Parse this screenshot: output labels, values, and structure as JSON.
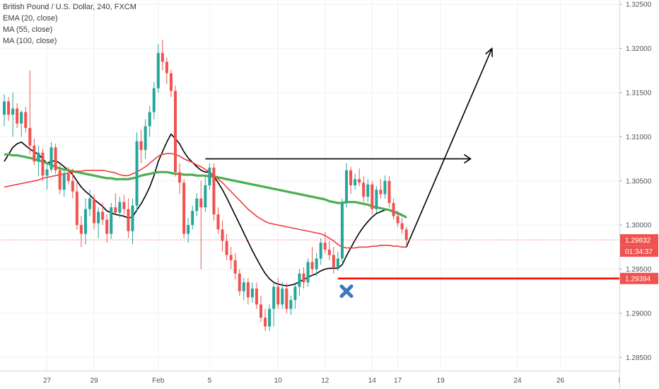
{
  "legend": {
    "title": "British Pound / U.S. Dollar, 240, FXCM",
    "ema20": "EMA (20, close)",
    "ma55": "MA (55, close)",
    "ma100": "MA (100, close)"
  },
  "colors": {
    "up": "#26a69a",
    "down": "#ef5350",
    "ema20": "#000000",
    "ma55": "#4caf50",
    "ma100": "#f23a3a",
    "support": "#ff0000",
    "x_mark": "#3a78c3",
    "price_label": "#ef5350"
  },
  "chart_data": {
    "type": "candlestick",
    "title": "British Pound / U.S. Dollar, 240, FXCM",
    "ylim": [
      1.2835,
      1.3255
    ],
    "yticks": [
      "1.32500",
      "1.32000",
      "1.31500",
      "1.31000",
      "1.30500",
      "1.30000",
      "1.29500",
      "1.29000",
      "1.28500"
    ],
    "ytick_values": [
      1.325,
      1.32,
      1.315,
      1.31,
      1.305,
      1.3,
      1.295,
      1.29,
      1.285
    ],
    "xticks": [
      "27",
      "29",
      "Feb",
      "5",
      "10",
      "12",
      "14",
      "17",
      "19",
      "24",
      "26",
      "Mar"
    ],
    "xtick_index": [
      10,
      21,
      36,
      48,
      64,
      75,
      86,
      92,
      102,
      120,
      130,
      145
    ],
    "candles": [
      [
        1.3125,
        1.3148,
        1.3112,
        1.314
      ],
      [
        1.314,
        1.3145,
        1.3118,
        1.3125
      ],
      [
        1.3125,
        1.315,
        1.31,
        1.3132
      ],
      [
        1.3132,
        1.3138,
        1.311,
        1.3115
      ],
      [
        1.3115,
        1.313,
        1.31,
        1.3128
      ],
      [
        1.3128,
        1.3134,
        1.3105,
        1.311
      ],
      [
        1.311,
        1.3175,
        1.308,
        1.309
      ],
      [
        1.309,
        1.3098,
        1.3068,
        1.3072
      ],
      [
        1.3072,
        1.309,
        1.3055,
        1.3082
      ],
      [
        1.3082,
        1.3086,
        1.305,
        1.3056
      ],
      [
        1.3056,
        1.307,
        1.304,
        1.3063
      ],
      [
        1.3063,
        1.3094,
        1.306,
        1.3088
      ],
      [
        1.3088,
        1.3092,
        1.3058,
        1.3062
      ],
      [
        1.3062,
        1.3068,
        1.3035,
        1.304
      ],
      [
        1.304,
        1.3062,
        1.3032,
        1.3058
      ],
      [
        1.3058,
        1.3066,
        1.3046,
        1.305
      ],
      [
        1.305,
        1.3064,
        1.303,
        1.3038
      ],
      [
        1.3038,
        1.3048,
        1.2995,
        1.3
      ],
      [
        1.3,
        1.301,
        1.2975,
        1.299
      ],
      [
        1.299,
        1.303,
        1.2978,
        1.3018
      ],
      [
        1.3018,
        1.304,
        1.301,
        1.303
      ],
      [
        1.303,
        1.3035,
        1.2995,
        1.3002
      ],
      [
        1.3002,
        1.302,
        1.2985,
        1.3015
      ],
      [
        1.3015,
        1.3025,
        1.3,
        1.3006
      ],
      [
        1.3006,
        1.3012,
        1.298,
        1.299
      ],
      [
        1.299,
        1.3025,
        1.2984,
        1.302
      ],
      [
        1.302,
        1.3036,
        1.3012,
        1.3014
      ],
      [
        1.3014,
        1.3032,
        1.3008,
        1.3026
      ],
      [
        1.3026,
        1.3034,
        1.3012,
        1.3018
      ],
      [
        1.3018,
        1.303,
        1.2985,
        1.2993
      ],
      [
        1.2993,
        1.303,
        1.2978,
        1.3022
      ],
      [
        1.3022,
        1.3105,
        1.3015,
        1.3095
      ],
      [
        1.3095,
        1.3108,
        1.307,
        1.3085
      ],
      [
        1.3085,
        1.312,
        1.3075,
        1.3112
      ],
      [
        1.3112,
        1.3135,
        1.31,
        1.3128
      ],
      [
        1.3128,
        1.3162,
        1.312,
        1.3155
      ],
      [
        1.3155,
        1.3205,
        1.315,
        1.3195
      ],
      [
        1.3195,
        1.321,
        1.3175,
        1.3185
      ],
      [
        1.3185,
        1.319,
        1.316,
        1.3172
      ],
      [
        1.3172,
        1.3176,
        1.3145,
        1.3152
      ],
      [
        1.3152,
        1.3158,
        1.3055,
        1.306
      ],
      [
        1.306,
        1.307,
        1.3035,
        1.3048
      ],
      [
        1.3048,
        1.3052,
        1.2985,
        1.299
      ],
      [
        1.299,
        1.3008,
        1.298,
        1.3
      ],
      [
        1.3,
        1.3022,
        1.2995,
        1.3016
      ],
      [
        1.3016,
        1.3036,
        1.301,
        1.303
      ],
      [
        1.303,
        1.305,
        1.295,
        1.302
      ],
      [
        1.302,
        1.3055,
        1.3015,
        1.3045
      ],
      [
        1.3045,
        1.307,
        1.304,
        1.3065
      ],
      [
        1.3065,
        1.307,
        1.3005,
        1.3012
      ],
      [
        1.3012,
        1.302,
        1.299,
        1.2995
      ],
      [
        1.2995,
        1.3005,
        1.297,
        1.2982
      ],
      [
        1.2982,
        1.299,
        1.296,
        1.2966
      ],
      [
        1.2966,
        1.2975,
        1.295,
        1.296
      ],
      [
        1.296,
        1.2968,
        1.2938,
        1.2945
      ],
      [
        1.2945,
        1.295,
        1.292,
        1.2925
      ],
      [
        1.2925,
        1.294,
        1.2915,
        1.2935
      ],
      [
        1.2935,
        1.294,
        1.291,
        1.2918
      ],
      [
        1.2918,
        1.2935,
        1.2912,
        1.2928
      ],
      [
        1.2928,
        1.2935,
        1.2905,
        1.291
      ],
      [
        1.291,
        1.292,
        1.289,
        1.2895
      ],
      [
        1.2895,
        1.2905,
        1.288,
        1.2885
      ],
      [
        1.2885,
        1.291,
        1.288,
        1.2905
      ],
      [
        1.2905,
        1.2935,
        1.2885,
        1.293
      ],
      [
        1.293,
        1.294,
        1.2905,
        1.291
      ],
      [
        1.291,
        1.2935,
        1.2905,
        1.2928
      ],
      [
        1.2928,
        1.2934,
        1.29,
        1.2905
      ],
      [
        1.2905,
        1.292,
        1.2898,
        1.2915
      ],
      [
        1.2915,
        1.2935,
        1.2905,
        1.293
      ],
      [
        1.293,
        1.295,
        1.292,
        1.2945
      ],
      [
        1.2945,
        1.2952,
        1.2928,
        1.2935
      ],
      [
        1.2935,
        1.2962,
        1.293,
        1.2958
      ],
      [
        1.2958,
        1.2975,
        1.2945,
        1.295
      ],
      [
        1.295,
        1.2968,
        1.2942,
        1.2962
      ],
      [
        1.2962,
        1.2985,
        1.2955,
        1.298
      ],
      [
        1.298,
        1.2992,
        1.2968,
        1.2972
      ],
      [
        1.2972,
        1.2982,
        1.296,
        1.2966
      ],
      [
        1.2966,
        1.2975,
        1.2945,
        1.2952
      ],
      [
        1.2952,
        1.297,
        1.2948,
        1.2962
      ],
      [
        1.2962,
        1.303,
        1.2958,
        1.3025
      ],
      [
        1.3025,
        1.307,
        1.302,
        1.3062
      ],
      [
        1.3062,
        1.3066,
        1.3035,
        1.3045
      ],
      [
        1.3045,
        1.3058,
        1.304,
        1.3052
      ],
      [
        1.3052,
        1.3064,
        1.3044,
        1.3048
      ],
      [
        1.3048,
        1.3055,
        1.3026,
        1.3032
      ],
      [
        1.3032,
        1.3052,
        1.3026,
        1.3046
      ],
      [
        1.3046,
        1.305,
        1.3012,
        1.3018
      ],
      [
        1.3018,
        1.3044,
        1.3014,
        1.304
      ],
      [
        1.304,
        1.3052,
        1.303,
        1.3035
      ],
      [
        1.3035,
        1.3056,
        1.303,
        1.305
      ],
      [
        1.305,
        1.3055,
        1.302,
        1.3025
      ],
      [
        1.3025,
        1.303,
        1.3006,
        1.301
      ],
      [
        1.301,
        1.3016,
        1.2998,
        1.3002
      ],
      [
        1.3002,
        1.3008,
        1.299,
        1.2995
      ],
      [
        1.2995,
        1.2998,
        1.2978,
        1.2983
      ]
    ],
    "series": [
      {
        "name": "EMA (20, close)",
        "values": [
          1.3072,
          1.308,
          1.3088,
          1.3092,
          1.3094,
          1.309,
          1.3086,
          1.3083,
          1.308,
          1.3075,
          1.307,
          1.3072,
          1.3073,
          1.307,
          1.3066,
          1.3062,
          1.3057,
          1.305,
          1.3043,
          1.3038,
          1.3034,
          1.3029,
          1.3025,
          1.3021,
          1.3016,
          1.3014,
          1.3012,
          1.3011,
          1.301,
          1.3008,
          1.3009,
          1.3017,
          1.3024,
          1.3033,
          1.3043,
          1.3056,
          1.3072,
          1.3083,
          1.3094,
          1.3103,
          1.3098,
          1.3092,
          1.3083,
          1.3076,
          1.3071,
          1.3066,
          1.3062,
          1.306,
          1.306,
          1.3055,
          1.3048,
          1.304,
          1.3031,
          1.3021,
          1.3011,
          1.3001,
          1.2991,
          1.2981,
          1.2971,
          1.2962,
          1.2953,
          1.2945,
          1.2939,
          1.2935,
          1.2933,
          1.2932,
          1.2931,
          1.2932,
          1.2933,
          1.2936,
          1.2938,
          1.2941,
          1.2943,
          1.2945,
          1.2948,
          1.295,
          1.2951,
          1.2951,
          1.2951,
          1.2955,
          1.2965,
          1.2974,
          1.2983,
          1.2991,
          1.2998,
          1.3004,
          1.3009,
          1.3013,
          1.3015,
          1.3017,
          1.3017,
          1.3016,
          1.3014,
          1.3012,
          1.3008
        ]
      },
      {
        "name": "MA (55, close)",
        "values": [
          1.308,
          1.308,
          1.3079,
          1.3079,
          1.3078,
          1.3077,
          1.3076,
          1.3075,
          1.3073,
          1.3072,
          1.307,
          1.3068,
          1.3066,
          1.3064,
          1.3063,
          1.3062,
          1.3061,
          1.306,
          1.3059,
          1.3058,
          1.3057,
          1.3056,
          1.3055,
          1.3054,
          1.3053,
          1.3053,
          1.3052,
          1.3052,
          1.3052,
          1.3052,
          1.3053,
          1.3054,
          1.3056,
          1.3057,
          1.3058,
          1.3059,
          1.306,
          1.306,
          1.306,
          1.3059,
          1.3058,
          1.3058,
          1.3057,
          1.3057,
          1.3057,
          1.3056,
          1.3056,
          1.3056,
          1.3055,
          1.3055,
          1.3054,
          1.3053,
          1.3052,
          1.3051,
          1.305,
          1.3049,
          1.3048,
          1.3047,
          1.3046,
          1.3045,
          1.3044,
          1.3043,
          1.3042,
          1.3041,
          1.304,
          1.3039,
          1.3038,
          1.3037,
          1.3036,
          1.3035,
          1.3034,
          1.3033,
          1.3032,
          1.3031,
          1.303,
          1.3029,
          1.3027,
          1.3026,
          1.3025,
          1.3025,
          1.3026,
          1.3026,
          1.3026,
          1.3025,
          1.3024,
          1.3023,
          1.3021,
          1.302,
          1.3019,
          1.3018,
          1.3017,
          1.3015,
          1.3013,
          1.3011,
          1.3009
        ]
      },
      {
        "name": "MA (100, close)",
        "values": [
          1.3043,
          1.3044,
          1.3045,
          1.3046,
          1.3047,
          1.3048,
          1.3049,
          1.305,
          1.3051,
          1.3053,
          1.3054,
          1.3055,
          1.3056,
          1.3057,
          1.3058,
          1.3059,
          1.306,
          1.3061,
          1.3061,
          1.3062,
          1.3062,
          1.3062,
          1.3062,
          1.3062,
          1.3061,
          1.306,
          1.3059,
          1.3057,
          1.3056,
          1.3056,
          1.3058,
          1.306,
          1.3063,
          1.3066,
          1.307,
          1.3074,
          1.3078,
          1.308,
          1.3081,
          1.3081,
          1.308,
          1.3078,
          1.3075,
          1.3073,
          1.3071,
          1.3068,
          1.3066,
          1.3063,
          1.306,
          1.3056,
          1.3052,
          1.3048,
          1.3043,
          1.3038,
          1.3033,
          1.3028,
          1.3023,
          1.3018,
          1.3014,
          1.301,
          1.3007,
          1.3004,
          1.3002,
          1.3001,
          1.3,
          1.2999,
          1.2998,
          1.2997,
          1.2996,
          1.2995,
          1.2994,
          1.2993,
          1.2992,
          1.2991,
          1.299,
          1.2988,
          1.2985,
          1.2982,
          1.2978,
          1.2975,
          1.2974,
          1.2974,
          1.2974,
          1.2975,
          1.2975,
          1.2975,
          1.2976,
          1.2976,
          1.2977,
          1.2977,
          1.2977,
          1.2976,
          1.2976,
          1.2975,
          1.2975
        ]
      }
    ],
    "annotations": {
      "resistance_line": {
        "x_start": 47,
        "x_end": 109,
        "y": 1.3075
      },
      "support_line": {
        "x_start": 78,
        "y": 1.29394
      },
      "projection_arrow": [
        {
          "x": 94,
          "y": 1.2975
        },
        {
          "x": 114,
          "y": 1.32
        }
      ],
      "x_mark": {
        "x": 80,
        "y": 1.2925
      }
    },
    "price_labels": [
      {
        "text": "1.29832",
        "value": 1.29832
      },
      {
        "text": "01:34:37",
        "value": 1.29832
      },
      {
        "text": "1.29394",
        "value": 1.29394
      }
    ]
  }
}
